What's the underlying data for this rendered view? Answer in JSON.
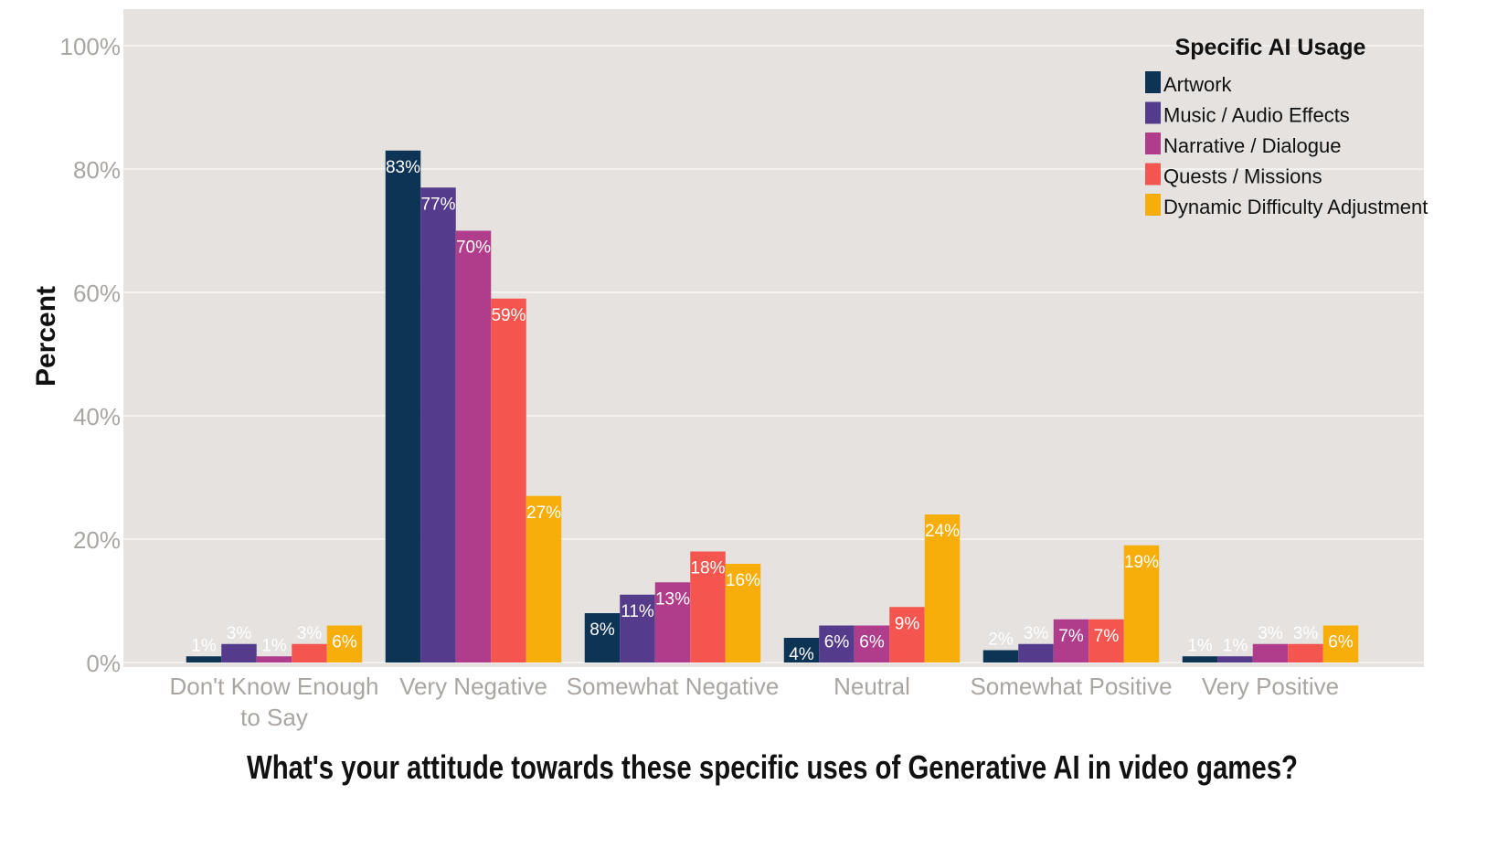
{
  "chart_data": {
    "type": "bar",
    "title": "What's your attitude towards these specific uses of Generative AI in video games?",
    "xlabel": "",
    "ylabel": "Percent",
    "ylim": [
      0,
      100
    ],
    "yticks": [
      "0%",
      "20%",
      "40%",
      "60%",
      "80%",
      "100%"
    ],
    "grid": true,
    "legend": {
      "title": "Specific AI Usage",
      "position": "top-right"
    },
    "categories": [
      "Don't Know Enough to Say",
      "Very Negative",
      "Somewhat Negative",
      "Neutral",
      "Somewhat Positive",
      "Very Positive"
    ],
    "series": [
      {
        "name": "Artwork",
        "color": "#0e3455",
        "values": [
          1,
          83,
          8,
          4,
          2,
          1
        ]
      },
      {
        "name": "Music / Audio Effects",
        "color": "#553b8b",
        "values": [
          3,
          77,
          11,
          6,
          3,
          1
        ]
      },
      {
        "name": "Narrative / Dialogue",
        "color": "#b03d8c",
        "values": [
          1,
          70,
          13,
          6,
          7,
          3
        ]
      },
      {
        "name": "Quests / Missions",
        "color": "#f4564f",
        "values": [
          3,
          59,
          18,
          9,
          7,
          3
        ]
      },
      {
        "name": "Dynamic Difficulty Adjustment",
        "color": "#f7ad0a",
        "values": [
          6,
          27,
          16,
          24,
          19,
          6
        ]
      }
    ]
  }
}
